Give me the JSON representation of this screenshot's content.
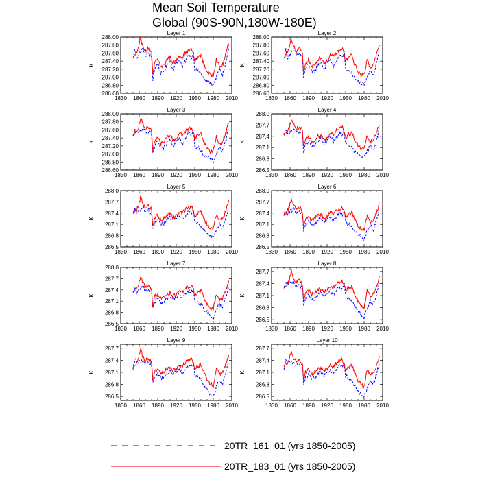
{
  "figure": {
    "title_line1": "Mean Soil Temperature",
    "title_line2": "Global (90S-90N,180W-180E)"
  },
  "colors": {
    "series1": "#0000ff",
    "series2": "#ff0000",
    "axis": "#000000"
  },
  "chart_data": {
    "type": "line",
    "x_range": [
      1830,
      2010
    ],
    "x_ticks": [
      1830,
      1860,
      1890,
      1920,
      1950,
      1980,
      2010
    ],
    "data_x_range": [
      1850,
      2005
    ],
    "ylabel": "K",
    "series": [
      {
        "name": "20TR_161_01 (yrs 1850-2005)",
        "color": "#0000ff",
        "style": "dashed"
      },
      {
        "name": "20TR_183_01 (yrs 1850-2005)",
        "color": "#ff0000",
        "style": "solid"
      }
    ],
    "anchor_years": [
      1850,
      1853,
      1856,
      1859,
      1862,
      1866,
      1870,
      1875,
      1880,
      1882,
      1885,
      1890,
      1895,
      1900,
      1905,
      1910,
      1915,
      1920,
      1925,
      1930,
      1935,
      1940,
      1945,
      1948,
      1950,
      1955,
      1960,
      1965,
      1970,
      1975,
      1980,
      1985,
      1990,
      1995,
      2000,
      2005
    ],
    "panels": [
      {
        "title": "Layer 1",
        "ylim": [
          286.6,
          288.0
        ],
        "yticks": [
          "286.60",
          "286.80",
          "287.00",
          "287.20",
          "287.40",
          "287.60",
          "287.80",
          "288.00"
        ],
        "s1": [
          287.45,
          287.7,
          287.5,
          287.55,
          287.62,
          287.72,
          287.55,
          287.6,
          287.5,
          286.95,
          287.2,
          287.35,
          287.1,
          287.15,
          287.3,
          287.4,
          287.2,
          287.35,
          287.45,
          287.25,
          287.4,
          287.55,
          287.5,
          287.6,
          287.2,
          287.15,
          287.1,
          286.95,
          286.9,
          286.85,
          286.8,
          287.0,
          287.2,
          287.05,
          287.35,
          287.7
        ],
        "s2": [
          287.5,
          287.55,
          287.6,
          287.72,
          287.95,
          287.8,
          287.65,
          287.72,
          287.6,
          287.05,
          287.35,
          287.45,
          287.25,
          287.3,
          287.45,
          287.5,
          287.35,
          287.4,
          287.55,
          287.5,
          287.6,
          287.65,
          287.7,
          287.55,
          287.4,
          287.5,
          287.55,
          287.3,
          287.15,
          287.05,
          287.05,
          287.45,
          287.25,
          287.3,
          287.55,
          287.85
        ]
      },
      {
        "title": "Layer 2",
        "ylim": [
          286.6,
          288.0
        ],
        "yticks": [
          "286.60",
          "286.80",
          "287.00",
          "287.20",
          "287.40",
          "287.60",
          "287.80",
          "288.00"
        ],
        "s1": [
          287.45,
          287.68,
          287.5,
          287.55,
          287.6,
          287.7,
          287.55,
          287.6,
          287.5,
          286.97,
          287.2,
          287.35,
          287.12,
          287.15,
          287.3,
          287.4,
          287.2,
          287.35,
          287.45,
          287.25,
          287.4,
          287.55,
          287.5,
          287.6,
          287.2,
          287.15,
          287.1,
          286.95,
          286.9,
          286.85,
          286.8,
          287.0,
          287.2,
          287.05,
          287.35,
          287.68
        ],
        "s2": [
          287.5,
          287.55,
          287.6,
          287.72,
          287.93,
          287.8,
          287.65,
          287.72,
          287.6,
          287.07,
          287.35,
          287.45,
          287.25,
          287.3,
          287.45,
          287.5,
          287.35,
          287.4,
          287.55,
          287.5,
          287.6,
          287.65,
          287.7,
          287.55,
          287.4,
          287.5,
          287.55,
          287.3,
          287.15,
          287.05,
          287.05,
          287.45,
          287.25,
          287.3,
          287.55,
          287.83
        ]
      },
      {
        "title": "Layer 3",
        "ylim": [
          286.6,
          288.0
        ],
        "yticks": [
          "286.60",
          "286.80",
          "287.00",
          "287.20",
          "287.40",
          "287.60",
          "287.80",
          "288.00"
        ],
        "s1": [
          287.42,
          287.62,
          287.48,
          287.52,
          287.58,
          287.66,
          287.52,
          287.56,
          287.48,
          286.98,
          287.18,
          287.32,
          287.12,
          287.15,
          287.28,
          287.38,
          287.2,
          287.33,
          287.42,
          287.25,
          287.38,
          287.52,
          287.47,
          287.56,
          287.2,
          287.15,
          287.1,
          286.97,
          286.92,
          286.87,
          286.82,
          287.0,
          287.18,
          287.05,
          287.32,
          287.65
        ],
        "s2": [
          287.48,
          287.53,
          287.57,
          287.68,
          287.88,
          287.76,
          287.62,
          287.68,
          287.57,
          287.08,
          287.33,
          287.42,
          287.25,
          287.3,
          287.42,
          287.48,
          287.33,
          287.38,
          287.52,
          287.47,
          287.57,
          287.62,
          287.66,
          287.52,
          287.38,
          287.47,
          287.52,
          287.3,
          287.15,
          287.07,
          287.07,
          287.42,
          287.25,
          287.3,
          287.52,
          287.78
        ]
      },
      {
        "title": "Layer 4",
        "ylim": [
          286.5,
          288.0
        ],
        "yticks": [
          "286.5",
          "286.8",
          "287.1",
          "287.4",
          "287.7",
          "288.0"
        ],
        "s1": [
          287.4,
          287.58,
          287.45,
          287.5,
          287.55,
          287.62,
          287.5,
          287.52,
          287.45,
          286.98,
          287.15,
          287.3,
          287.12,
          287.15,
          287.26,
          287.35,
          287.2,
          287.3,
          287.4,
          287.25,
          287.35,
          287.5,
          287.45,
          287.52,
          287.2,
          287.15,
          287.1,
          286.97,
          286.92,
          286.87,
          286.82,
          287.0,
          287.15,
          287.05,
          287.3,
          287.6
        ],
        "s2": [
          287.45,
          287.5,
          287.55,
          287.65,
          287.85,
          287.72,
          287.6,
          287.65,
          287.55,
          287.08,
          287.3,
          287.4,
          287.25,
          287.3,
          287.4,
          287.45,
          287.32,
          287.35,
          287.5,
          287.45,
          287.55,
          287.6,
          287.63,
          287.5,
          287.37,
          287.45,
          287.5,
          287.3,
          287.15,
          287.07,
          287.07,
          287.4,
          287.25,
          287.3,
          287.5,
          287.75
        ]
      },
      {
        "title": "Layer 5",
        "ylim": [
          286.5,
          288.0
        ],
        "yticks": [
          "286.5",
          "286.8",
          "287.1",
          "287.4",
          "287.7",
          "288.0"
        ],
        "s1": [
          287.35,
          287.52,
          287.4,
          287.45,
          287.5,
          287.55,
          287.45,
          287.48,
          287.4,
          286.95,
          287.12,
          287.25,
          287.1,
          287.12,
          287.22,
          287.3,
          287.17,
          287.27,
          287.35,
          287.22,
          287.32,
          287.45,
          287.4,
          287.48,
          287.17,
          287.12,
          287.07,
          286.95,
          286.88,
          286.82,
          286.75,
          286.95,
          287.1,
          287.0,
          287.25,
          287.55
        ],
        "s2": [
          287.4,
          287.45,
          287.5,
          287.6,
          287.82,
          287.65,
          287.55,
          287.6,
          287.5,
          287.05,
          287.27,
          287.35,
          287.22,
          287.27,
          287.35,
          287.4,
          287.28,
          287.32,
          287.45,
          287.4,
          287.5,
          287.55,
          287.58,
          287.45,
          287.32,
          287.4,
          287.45,
          287.25,
          287.1,
          287.02,
          287.0,
          287.35,
          287.2,
          287.25,
          287.45,
          287.7
        ]
      },
      {
        "title": "Layer 6",
        "ylim": [
          286.5,
          288.0
        ],
        "yticks": [
          "286.5",
          "286.8",
          "287.1",
          "287.4",
          "287.7",
          "288.0"
        ],
        "s1": [
          287.32,
          287.48,
          287.38,
          287.42,
          287.47,
          287.52,
          287.42,
          287.45,
          287.38,
          286.93,
          287.1,
          287.22,
          287.08,
          287.1,
          287.2,
          287.27,
          287.15,
          287.25,
          287.32,
          287.2,
          287.3,
          287.42,
          287.38,
          287.45,
          287.15,
          287.1,
          287.05,
          286.92,
          286.85,
          286.78,
          286.7,
          286.92,
          287.07,
          286.97,
          287.22,
          287.5
        ],
        "s2": [
          287.37,
          287.42,
          287.47,
          287.57,
          287.8,
          287.62,
          287.52,
          287.57,
          287.47,
          287.02,
          287.25,
          287.32,
          287.2,
          287.25,
          287.32,
          287.37,
          287.26,
          287.3,
          287.42,
          287.37,
          287.47,
          287.52,
          287.55,
          287.42,
          287.3,
          287.37,
          287.42,
          287.22,
          287.07,
          286.98,
          286.95,
          287.32,
          287.17,
          287.22,
          287.42,
          287.67
        ]
      },
      {
        "title": "Layer 7",
        "ylim": [
          286.5,
          288.0
        ],
        "yticks": [
          "286.5",
          "286.8",
          "287.1",
          "287.4",
          "287.7",
          "288.0"
        ],
        "s1": [
          287.28,
          287.42,
          287.35,
          287.38,
          287.43,
          287.48,
          287.38,
          287.4,
          287.33,
          286.9,
          287.07,
          287.18,
          287.05,
          287.07,
          287.17,
          287.23,
          287.12,
          287.22,
          287.28,
          287.17,
          287.27,
          287.38,
          287.35,
          287.42,
          287.12,
          287.07,
          287.02,
          286.88,
          286.8,
          286.72,
          286.62,
          286.88,
          287.03,
          286.93,
          287.18,
          287.45
        ],
        "s2": [
          287.33,
          287.38,
          287.43,
          287.53,
          287.77,
          287.58,
          287.48,
          287.53,
          287.43,
          286.98,
          287.22,
          287.28,
          287.17,
          287.22,
          287.28,
          287.33,
          287.23,
          287.27,
          287.38,
          287.33,
          287.43,
          287.48,
          287.52,
          287.38,
          287.27,
          287.33,
          287.38,
          287.18,
          287.02,
          286.93,
          286.88,
          287.28,
          287.13,
          287.18,
          287.38,
          287.62
        ]
      },
      {
        "title": "Layer 8",
        "ylim": [
          286.4,
          287.8
        ],
        "yticks": [
          "286.5",
          "286.8",
          "287.1",
          "287.4",
          "287.7"
        ],
        "s1": [
          287.25,
          287.45,
          287.38,
          287.42,
          287.4,
          287.42,
          287.35,
          287.37,
          287.3,
          286.88,
          287.02,
          287.12,
          287.0,
          287.02,
          287.12,
          287.18,
          287.07,
          287.17,
          287.22,
          287.12,
          287.22,
          287.32,
          287.3,
          287.37,
          287.07,
          287.02,
          286.97,
          286.82,
          286.72,
          286.62,
          286.55,
          286.8,
          286.97,
          286.87,
          287.12,
          287.4
        ],
        "s2": [
          287.28,
          287.33,
          287.38,
          287.48,
          287.72,
          287.52,
          287.43,
          287.48,
          287.38,
          286.93,
          287.17,
          287.23,
          287.12,
          287.17,
          287.23,
          287.28,
          287.18,
          287.22,
          287.33,
          287.28,
          287.38,
          287.43,
          287.47,
          287.33,
          287.22,
          287.28,
          287.33,
          287.13,
          286.97,
          286.87,
          286.8,
          287.23,
          287.08,
          287.13,
          287.33,
          287.57
        ]
      },
      {
        "title": "Layer 9",
        "ylim": [
          286.4,
          287.8
        ],
        "yticks": [
          "286.5",
          "286.8",
          "287.1",
          "287.4",
          "287.7"
        ],
        "s1": [
          287.22,
          287.42,
          287.35,
          287.38,
          287.37,
          287.38,
          287.32,
          287.33,
          287.27,
          286.85,
          286.98,
          287.08,
          286.97,
          286.98,
          287.08,
          287.13,
          287.03,
          287.13,
          287.18,
          287.08,
          287.18,
          287.28,
          287.27,
          287.33,
          287.03,
          286.98,
          286.93,
          286.78,
          286.67,
          286.57,
          286.5,
          286.75,
          286.92,
          286.82,
          287.07,
          287.35
        ],
        "s2": [
          287.25,
          287.3,
          287.35,
          287.45,
          287.68,
          287.48,
          287.4,
          287.45,
          287.35,
          286.9,
          287.13,
          287.2,
          287.08,
          287.13,
          287.2,
          287.25,
          287.15,
          287.18,
          287.3,
          287.25,
          287.35,
          287.4,
          287.43,
          287.3,
          287.18,
          287.25,
          287.3,
          287.1,
          286.93,
          286.83,
          286.75,
          287.2,
          287.05,
          287.1,
          287.3,
          287.53
        ]
      },
      {
        "title": "Layer 10",
        "ylim": [
          286.4,
          287.8
        ],
        "yticks": [
          "286.5",
          "286.8",
          "287.1",
          "287.4",
          "287.7"
        ],
        "s1": [
          287.2,
          287.4,
          287.33,
          287.35,
          287.35,
          287.36,
          287.3,
          287.31,
          287.25,
          286.84,
          286.96,
          287.06,
          286.95,
          286.96,
          287.06,
          287.11,
          287.01,
          287.11,
          287.16,
          287.06,
          287.16,
          287.26,
          287.25,
          287.31,
          287.01,
          286.96,
          286.91,
          286.76,
          286.65,
          286.55,
          286.48,
          286.73,
          286.9,
          286.8,
          287.05,
          287.33
        ],
        "s2": [
          287.23,
          287.28,
          287.33,
          287.43,
          287.66,
          287.46,
          287.38,
          287.43,
          287.33,
          286.88,
          287.11,
          287.18,
          287.06,
          287.11,
          287.18,
          287.23,
          287.13,
          287.16,
          287.28,
          287.23,
          287.33,
          287.38,
          287.41,
          287.28,
          287.16,
          287.23,
          287.28,
          287.08,
          286.91,
          286.81,
          286.73,
          287.18,
          287.03,
          287.08,
          287.28,
          287.51
        ]
      }
    ]
  }
}
